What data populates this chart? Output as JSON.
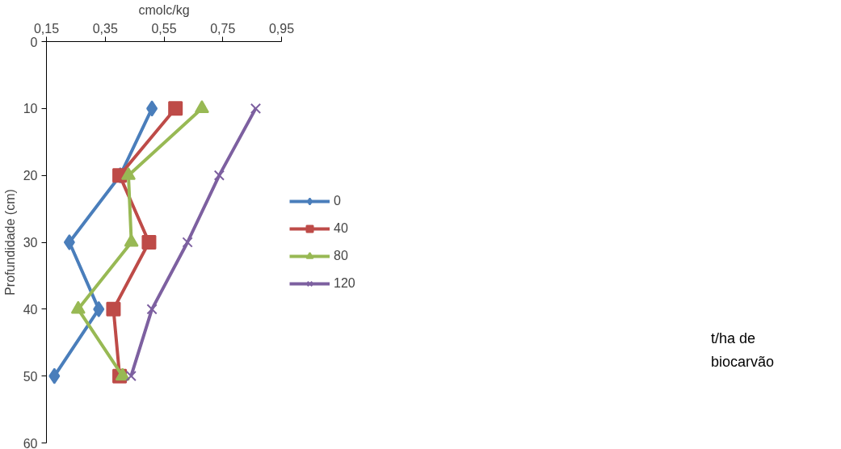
{
  "chart_data": {
    "type": "line",
    "xlabel": "cmolc/kg",
    "ylabel": "Profundidade (cm)",
    "xlim": [
      0.15,
      0.95
    ],
    "xticks": [
      {
        "value": 0.15,
        "label": "0,15"
      },
      {
        "value": 0.35,
        "label": "0,35"
      },
      {
        "value": 0.55,
        "label": "0,55"
      },
      {
        "value": 0.75,
        "label": "0,75"
      },
      {
        "value": 0.95,
        "label": "0,95"
      }
    ],
    "ylim": [
      60,
      0
    ],
    "yticks": [
      0,
      10,
      20,
      30,
      40,
      50,
      60
    ],
    "grid": false,
    "legend": "right",
    "annotations": [
      "t/ha de biocarvão"
    ],
    "series": [
      {
        "name": "0",
        "color": "#4a7ebb",
        "marker": "diamond",
        "x": [
          0.509,
          0.401,
          0.228,
          0.328,
          0.177
        ],
        "values": [
          10,
          20,
          30,
          40,
          50
        ]
      },
      {
        "name": "40",
        "color": "#be4b48",
        "marker": "square",
        "x": [
          0.589,
          0.399,
          0.499,
          0.378,
          0.399
        ],
        "values": [
          10,
          20,
          30,
          40,
          50
        ]
      },
      {
        "name": "80",
        "color": "#98b954",
        "marker": "triangle",
        "x": [
          0.679,
          0.429,
          0.439,
          0.258,
          0.409
        ],
        "values": [
          10,
          20,
          30,
          40,
          50
        ]
      },
      {
        "name": "120",
        "color": "#7d60a0",
        "marker": "cross",
        "x": [
          0.862,
          0.738,
          0.63,
          0.509,
          0.438
        ],
        "values": [
          10,
          20,
          30,
          40,
          50
        ]
      }
    ]
  }
}
